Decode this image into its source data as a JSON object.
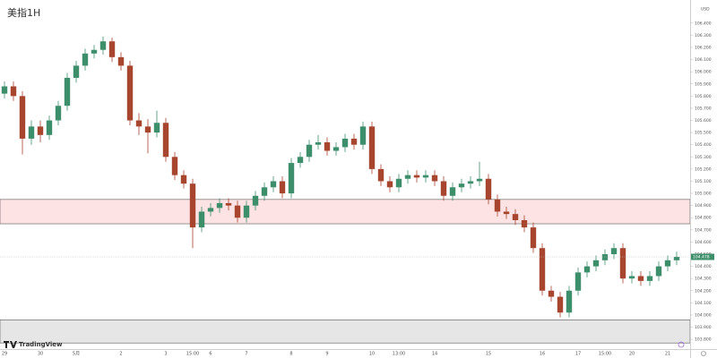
{
  "chart_data": {
    "type": "candlestick",
    "title": "美指1H",
    "currency": "USD",
    "watermark": "TradingView",
    "up_color": "#3d8f6c",
    "down_color": "#a8452f",
    "ylim": [
      103.72,
      106.59
    ],
    "yticks": [
      {
        "value": 106.4,
        "label": "106.400"
      },
      {
        "value": 106.3,
        "label": "106.300"
      },
      {
        "value": 106.2,
        "label": "106.200"
      },
      {
        "value": 106.1,
        "label": "106.100"
      },
      {
        "value": 106.0,
        "label": "106.000"
      },
      {
        "value": 105.9,
        "label": "105.900"
      },
      {
        "value": 105.8,
        "label": "105.800"
      },
      {
        "value": 105.7,
        "label": "105.700"
      },
      {
        "value": 105.6,
        "label": "105.600"
      },
      {
        "value": 105.5,
        "label": "105.500"
      },
      {
        "value": 105.4,
        "label": "105.400"
      },
      {
        "value": 105.3,
        "label": "105.300"
      },
      {
        "value": 105.2,
        "label": "105.200"
      },
      {
        "value": 105.1,
        "label": "105.100"
      },
      {
        "value": 105.0,
        "label": "105.000"
      },
      {
        "value": 104.9,
        "label": "104.900"
      },
      {
        "value": 104.8,
        "label": "104.800"
      },
      {
        "value": 104.7,
        "label": "104.700"
      },
      {
        "value": 104.6,
        "label": "104.600"
      },
      {
        "value": 104.5,
        "label": "104.500"
      },
      {
        "value": 104.4,
        "label": "104.400"
      },
      {
        "value": 104.3,
        "label": "104.300"
      },
      {
        "value": 104.2,
        "label": "104.200"
      },
      {
        "value": 104.1,
        "label": "104.100"
      },
      {
        "value": 104.0,
        "label": "104.000"
      },
      {
        "value": 103.9,
        "label": "103.900"
      },
      {
        "value": 103.8,
        "label": "103.800"
      }
    ],
    "last_price": 104.478,
    "zones": [
      {
        "from": 104.75,
        "to": 104.95,
        "color": "#fde3e3"
      },
      {
        "from": 103.77,
        "to": 103.96,
        "color": "#e6e6e6"
      }
    ],
    "categories": [
      "29",
      null,
      null,
      null,
      "30",
      null,
      null,
      null,
      "5月",
      null,
      null,
      null,
      null,
      "2",
      null,
      null,
      null,
      null,
      "3",
      null,
      null,
      "15:00",
      null,
      "6",
      null,
      null,
      null,
      "7",
      null,
      null,
      null,
      null,
      "8",
      null,
      null,
      null,
      "9",
      null,
      null,
      null,
      null,
      "10",
      null,
      null,
      "13:00",
      null,
      null,
      null,
      "14",
      null,
      null,
      null,
      null,
      null,
      "15",
      null,
      null,
      null,
      null,
      null,
      "16",
      null,
      null,
      null,
      "17",
      null,
      null,
      "15:00",
      null,
      null,
      "20",
      null,
      null,
      null,
      "21",
      null
    ],
    "open": [
      105.82,
      105.88,
      105.8,
      105.45,
      105.55,
      105.48,
      105.6,
      105.72,
      105.95,
      106.05,
      106.15,
      106.18,
      106.25,
      106.12,
      106.05,
      105.6,
      105.55,
      105.5,
      105.58,
      105.3,
      105.15,
      105.08,
      104.72,
      104.85,
      104.88,
      104.92,
      104.9,
      104.8,
      104.9,
      104.98,
      105.05,
      105.1,
      105.0,
      105.25,
      105.3,
      105.4,
      105.42,
      105.35,
      105.38,
      105.45,
      105.4,
      105.55,
      105.2,
      105.1,
      105.05,
      105.12,
      105.15,
      105.13,
      105.15,
      105.1,
      104.98,
      105.05,
      105.08,
      105.1,
      105.12,
      104.95,
      104.85,
      104.83,
      104.78,
      104.72,
      104.55,
      104.2,
      104.15,
      104.02,
      104.2,
      104.35,
      104.4,
      104.45,
      104.5,
      104.55,
      104.3,
      104.32,
      104.28,
      104.32,
      104.4,
      104.45
    ],
    "high": [
      105.92,
      105.92,
      105.84,
      105.6,
      105.6,
      105.64,
      105.76,
      105.99,
      106.09,
      106.19,
      106.22,
      106.29,
      106.28,
      106.16,
      106.09,
      105.66,
      105.61,
      105.68,
      105.62,
      105.34,
      105.19,
      105.12,
      104.89,
      104.92,
      104.96,
      104.96,
      104.94,
      104.94,
      105.02,
      105.09,
      105.14,
      105.14,
      105.29,
      105.34,
      105.44,
      105.48,
      105.46,
      105.42,
      105.49,
      105.49,
      105.59,
      105.59,
      105.24,
      105.14,
      105.16,
      105.19,
      105.19,
      105.19,
      105.19,
      105.14,
      105.09,
      105.12,
      105.14,
      105.26,
      105.16,
      104.99,
      104.89,
      104.87,
      104.82,
      104.76,
      104.59,
      104.24,
      104.19,
      104.24,
      104.39,
      104.44,
      104.49,
      104.54,
      104.59,
      104.59,
      104.36,
      104.36,
      104.36,
      104.44,
      104.49,
      104.52
    ],
    "low": [
      105.78,
      105.76,
      105.32,
      105.4,
      105.42,
      105.44,
      105.56,
      105.68,
      105.91,
      106.01,
      106.11,
      106.14,
      106.08,
      106.01,
      105.56,
      105.48,
      105.33,
      105.46,
      105.26,
      105.11,
      105.04,
      104.55,
      104.68,
      104.81,
      104.84,
      104.86,
      104.76,
      104.76,
      104.86,
      104.94,
      105.01,
      104.96,
      104.96,
      105.21,
      105.26,
      105.36,
      105.31,
      105.31,
      105.34,
      105.36,
      105.36,
      105.16,
      105.06,
      105.01,
      105.01,
      105.08,
      105.09,
      105.09,
      105.06,
      104.94,
      104.94,
      105.01,
      105.04,
      105.06,
      104.91,
      104.81,
      104.79,
      104.74,
      104.68,
      104.51,
      104.16,
      104.11,
      103.98,
      103.98,
      104.16,
      104.31,
      104.36,
      104.41,
      104.46,
      104.26,
      104.26,
      104.24,
      104.24,
      104.28,
      104.36,
      104.41
    ],
    "close": [
      105.88,
      105.8,
      105.45,
      105.55,
      105.48,
      105.6,
      105.72,
      105.95,
      106.05,
      106.15,
      106.18,
      106.25,
      106.12,
      106.05,
      105.6,
      105.55,
      105.5,
      105.58,
      105.3,
      105.15,
      105.08,
      104.72,
      104.85,
      104.88,
      104.92,
      104.9,
      104.8,
      104.9,
      104.98,
      105.05,
      105.1,
      105.0,
      105.25,
      105.3,
      105.4,
      105.42,
      105.35,
      105.38,
      105.45,
      105.4,
      105.55,
      105.2,
      105.1,
      105.05,
      105.12,
      105.15,
      105.13,
      105.15,
      105.1,
      104.98,
      105.05,
      105.08,
      105.1,
      105.12,
      104.95,
      104.85,
      104.83,
      104.78,
      104.72,
      104.55,
      104.2,
      104.15,
      104.02,
      104.2,
      104.35,
      104.4,
      104.45,
      104.5,
      104.55,
      104.3,
      104.32,
      104.28,
      104.32,
      104.4,
      104.45,
      104.478
    ]
  }
}
